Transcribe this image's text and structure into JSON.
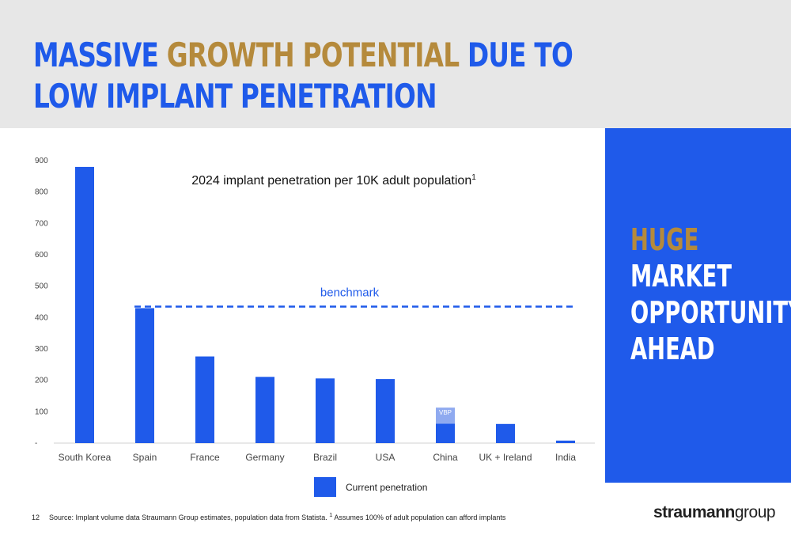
{
  "header": {
    "title_part1": "MASSIVE ",
    "title_highlight": "GROWTH POTENTIAL",
    "title_part2": " DUE TO LOW IMPLANT PENETRATION"
  },
  "panel": {
    "highlight": "HUGE",
    "line1": "MARKET",
    "line2": "OPPORTUNITY",
    "line3": "AHEAD"
  },
  "chart_data": {
    "type": "bar",
    "title": "2024 implant penetration per 10K adult population",
    "title_superscript": "1",
    "categories": [
      "South Korea",
      "Spain",
      "France",
      "Germany",
      "Brazil",
      "USA",
      "China",
      "UK + Ireland",
      "India"
    ],
    "series": [
      {
        "name": "Current penetration",
        "values": [
          880,
          430,
          276,
          211,
          206,
          204,
          62,
          61,
          8
        ]
      }
    ],
    "china_vbp": {
      "label": "VBP",
      "extra": 51
    },
    "benchmark": {
      "label": "benchmark",
      "value": 435
    },
    "yticks": [
      "-",
      "100",
      "200",
      "300",
      "400",
      "500",
      "600",
      "700",
      "800",
      "900"
    ],
    "ylim": [
      0,
      900
    ],
    "colors": {
      "bar": "#1f5aea",
      "vbp": "#8faaf0",
      "benchmark": "#1f5aea"
    },
    "legend": "bottom"
  },
  "footer": {
    "page": "12",
    "source": "Source: Implant volume data Straumann Group estimates, population data from Statista.",
    "note_sup": "1",
    "note": " Assumes 100% of adult population can afford implants"
  },
  "logo": {
    "bold": "straumann",
    "light": "group"
  }
}
